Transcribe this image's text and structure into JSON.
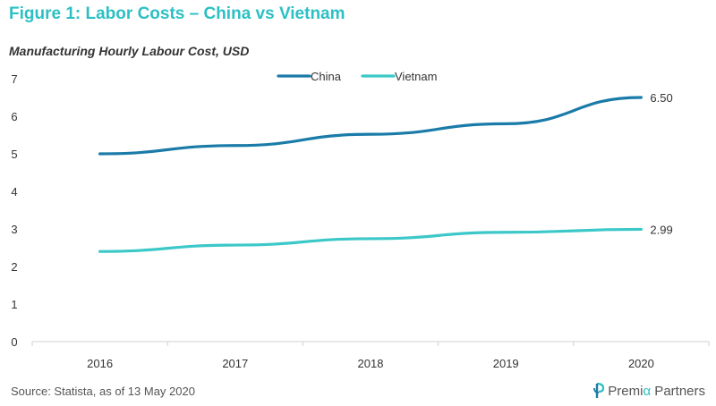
{
  "figure_title": "Figure 1: Labor Costs – China vs Vietnam",
  "subtitle": "Manufacturing Hourly Labour Cost, USD",
  "source": "Source: Statista, as of 13 May 2020",
  "logo": {
    "prefix": "Premi",
    "alpha": "α",
    "suffix": " Partners",
    "icon": "premia-logo-icon"
  },
  "colors": {
    "china": "#1a7ba8",
    "vietnam": "#3cc8c8",
    "title": "#2cc0c4",
    "axis": "#d0d0d0",
    "text": "#333333"
  },
  "chart_data": {
    "type": "line",
    "x": [
      "2016",
      "2017",
      "2018",
      "2019",
      "2020"
    ],
    "series": [
      {
        "name": "China",
        "values": [
          5.0,
          5.22,
          5.52,
          5.8,
          6.5
        ],
        "end_label": "6.50"
      },
      {
        "name": "Vietnam",
        "values": [
          2.4,
          2.57,
          2.74,
          2.91,
          2.99
        ],
        "end_label": "2.99"
      }
    ],
    "yticks": [
      "0",
      "1",
      "2",
      "3",
      "4",
      "5",
      "6",
      "7"
    ],
    "ylim": [
      0,
      7
    ],
    "grid": false,
    "legend_position": "top-center"
  }
}
